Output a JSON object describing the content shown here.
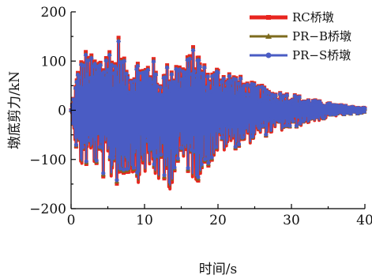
{
  "chart_data": {
    "type": "line",
    "xlabel": "时间/s",
    "ylabel": "墩底剪力/kN",
    "xlim": [
      0,
      40
    ],
    "ylim": [
      -200,
      200
    ],
    "x_ticks": [
      "0",
      "10",
      "20",
      "30",
      "40"
    ],
    "y_ticks": [
      "200",
      "100",
      "0",
      "−100",
      "−200"
    ],
    "legend_position": "top-right",
    "series": [
      {
        "name": "RC桥墩",
        "color": "#e8251f",
        "marker": "square",
        "line_width": 4
      },
      {
        "name": "PR−B桥墩",
        "color": "#7d6b1e",
        "marker": "triangle",
        "line_width": 2
      },
      {
        "name": "PR−S桥墩",
        "color": "#4a5cc4",
        "marker": "circle",
        "line_width": 2
      }
    ],
    "envelope": {
      "time_s": [
        0,
        1,
        2,
        3,
        4,
        5,
        6,
        6.5,
        7,
        8,
        9,
        10,
        11,
        12,
        13,
        14,
        15,
        16,
        17,
        18,
        19,
        20,
        22,
        24,
        26,
        28,
        30,
        32,
        34,
        36,
        38,
        40
      ],
      "max_kN": [
        0,
        95,
        125,
        110,
        120,
        140,
        120,
        160,
        110,
        90,
        110,
        100,
        120,
        60,
        95,
        110,
        100,
        115,
        140,
        100,
        80,
        95,
        80,
        60,
        50,
        40,
        35,
        25,
        18,
        12,
        8,
        5
      ],
      "min_kN": [
        0,
        -120,
        -120,
        -110,
        -130,
        -155,
        -140,
        -170,
        -150,
        -130,
        -150,
        -130,
        -140,
        -150,
        -180,
        -140,
        -120,
        -130,
        -150,
        -130,
        -110,
        -90,
        -80,
        -70,
        -55,
        -45,
        -38,
        -28,
        -20,
        -12,
        -8,
        -5
      ]
    }
  }
}
